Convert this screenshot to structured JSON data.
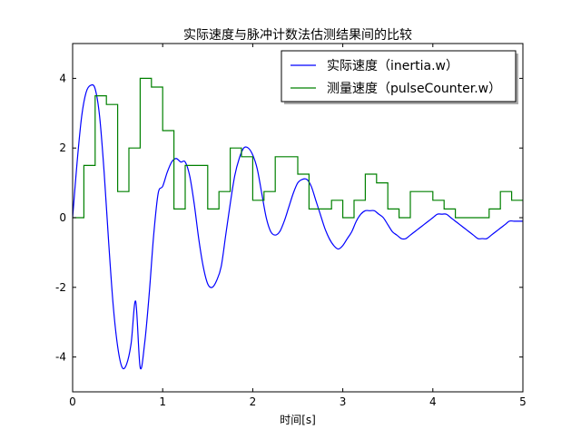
{
  "chart_data": {
    "type": "line",
    "title": "实际速度与脉冲计数法估测结果间的比较",
    "xlabel": "时间[s]",
    "ylabel": "",
    "xlim": [
      0,
      5
    ],
    "ylim": [
      -5,
      5
    ],
    "grid": false,
    "legend_position": "top-right",
    "x_ticks": [
      0,
      1,
      2,
      3,
      4,
      5
    ],
    "y_ticks": [
      -4,
      -2,
      0,
      2,
      4
    ],
    "series": [
      {
        "name": "实际速度（inertia.w）",
        "style": "line",
        "color": "#0000ff",
        "x": [
          0.0,
          0.05,
          0.1,
          0.15,
          0.2,
          0.25,
          0.3,
          0.35,
          0.4,
          0.45,
          0.5,
          0.55,
          0.6,
          0.65,
          0.7,
          0.75,
          0.8,
          0.85,
          0.9,
          0.95,
          1.0,
          1.05,
          1.1,
          1.15,
          1.2,
          1.25,
          1.3,
          1.35,
          1.4,
          1.45,
          1.5,
          1.55,
          1.6,
          1.65,
          1.7,
          1.75,
          1.8,
          1.85,
          1.9,
          1.95,
          2.0,
          2.05,
          2.1,
          2.15,
          2.2,
          2.25,
          2.3,
          2.35,
          2.4,
          2.45,
          2.5,
          2.55,
          2.6,
          2.65,
          2.7,
          2.75,
          2.8,
          2.85,
          2.9,
          2.95,
          3.0,
          3.05,
          3.1,
          3.15,
          3.2,
          3.25,
          3.3,
          3.35,
          3.4,
          3.45,
          3.5,
          3.55,
          3.6,
          3.65,
          3.7,
          3.75,
          3.8,
          3.85,
          3.9,
          3.95,
          4.0,
          4.05,
          4.1,
          4.15,
          4.2,
          4.25,
          4.3,
          4.35,
          4.4,
          4.45,
          4.5,
          4.55,
          4.6,
          4.65,
          4.7,
          4.75,
          4.8,
          4.85,
          4.9,
          4.95,
          5.0
        ],
        "values": [
          0.0,
          1.6,
          2.9,
          3.6,
          3.8,
          3.7,
          2.9,
          1.3,
          -0.7,
          -2.5,
          -3.7,
          -4.3,
          -4.2,
          -3.6,
          -2.4,
          -4.3,
          -3.6,
          -2.2,
          -0.5,
          0.7,
          0.9,
          1.3,
          1.6,
          1.7,
          1.6,
          1.6,
          1.2,
          0.4,
          -0.6,
          -1.4,
          -1.9,
          -2.0,
          -1.8,
          -1.4,
          -0.5,
          0.4,
          1.2,
          1.7,
          2.0,
          2.0,
          1.8,
          1.4,
          0.7,
          0.0,
          -0.4,
          -0.5,
          -0.4,
          -0.1,
          0.3,
          0.7,
          1.0,
          1.1,
          1.1,
          0.9,
          0.5,
          0.1,
          -0.3,
          -0.6,
          -0.8,
          -0.9,
          -0.8,
          -0.6,
          -0.4,
          -0.1,
          0.1,
          0.2,
          0.2,
          0.2,
          0.1,
          0.0,
          -0.2,
          -0.4,
          -0.5,
          -0.6,
          -0.6,
          -0.5,
          -0.4,
          -0.3,
          -0.2,
          -0.1,
          0.0,
          0.1,
          0.1,
          0.1,
          0.0,
          -0.1,
          -0.2,
          -0.3,
          -0.4,
          -0.5,
          -0.6,
          -0.6,
          -0.6,
          -0.5,
          -0.4,
          -0.3,
          -0.2,
          -0.1,
          -0.1,
          -0.1,
          -0.1
        ]
      },
      {
        "name": "测量速度（pulseCounter.w）",
        "style": "step",
        "color": "#008000",
        "x": [
          0.0,
          0.125,
          0.25,
          0.375,
          0.5,
          0.625,
          0.75,
          0.875,
          1.0,
          1.125,
          1.25,
          1.375,
          1.5,
          1.625,
          1.75,
          1.875,
          2.0,
          2.125,
          2.25,
          2.375,
          2.5,
          2.625,
          2.75,
          2.875,
          3.0,
          3.125,
          3.25,
          3.375,
          3.5,
          3.625,
          3.75,
          3.875,
          4.0,
          4.125,
          4.25,
          4.375,
          4.5,
          4.625,
          4.75,
          4.875
        ],
        "values": [
          0.0,
          1.5,
          3.5,
          3.25,
          0.75,
          2.0,
          4.0,
          3.75,
          2.5,
          0.25,
          1.5,
          1.5,
          0.25,
          0.75,
          2.0,
          1.75,
          0.5,
          0.75,
          1.75,
          1.75,
          1.25,
          0.25,
          0.25,
          0.5,
          0.0,
          0.5,
          1.25,
          1.0,
          0.25,
          0.0,
          0.75,
          0.75,
          0.5,
          0.25,
          0.0,
          0.0,
          0.0,
          0.25,
          0.75,
          0.5
        ],
        "x_end": 5.0
      }
    ]
  }
}
